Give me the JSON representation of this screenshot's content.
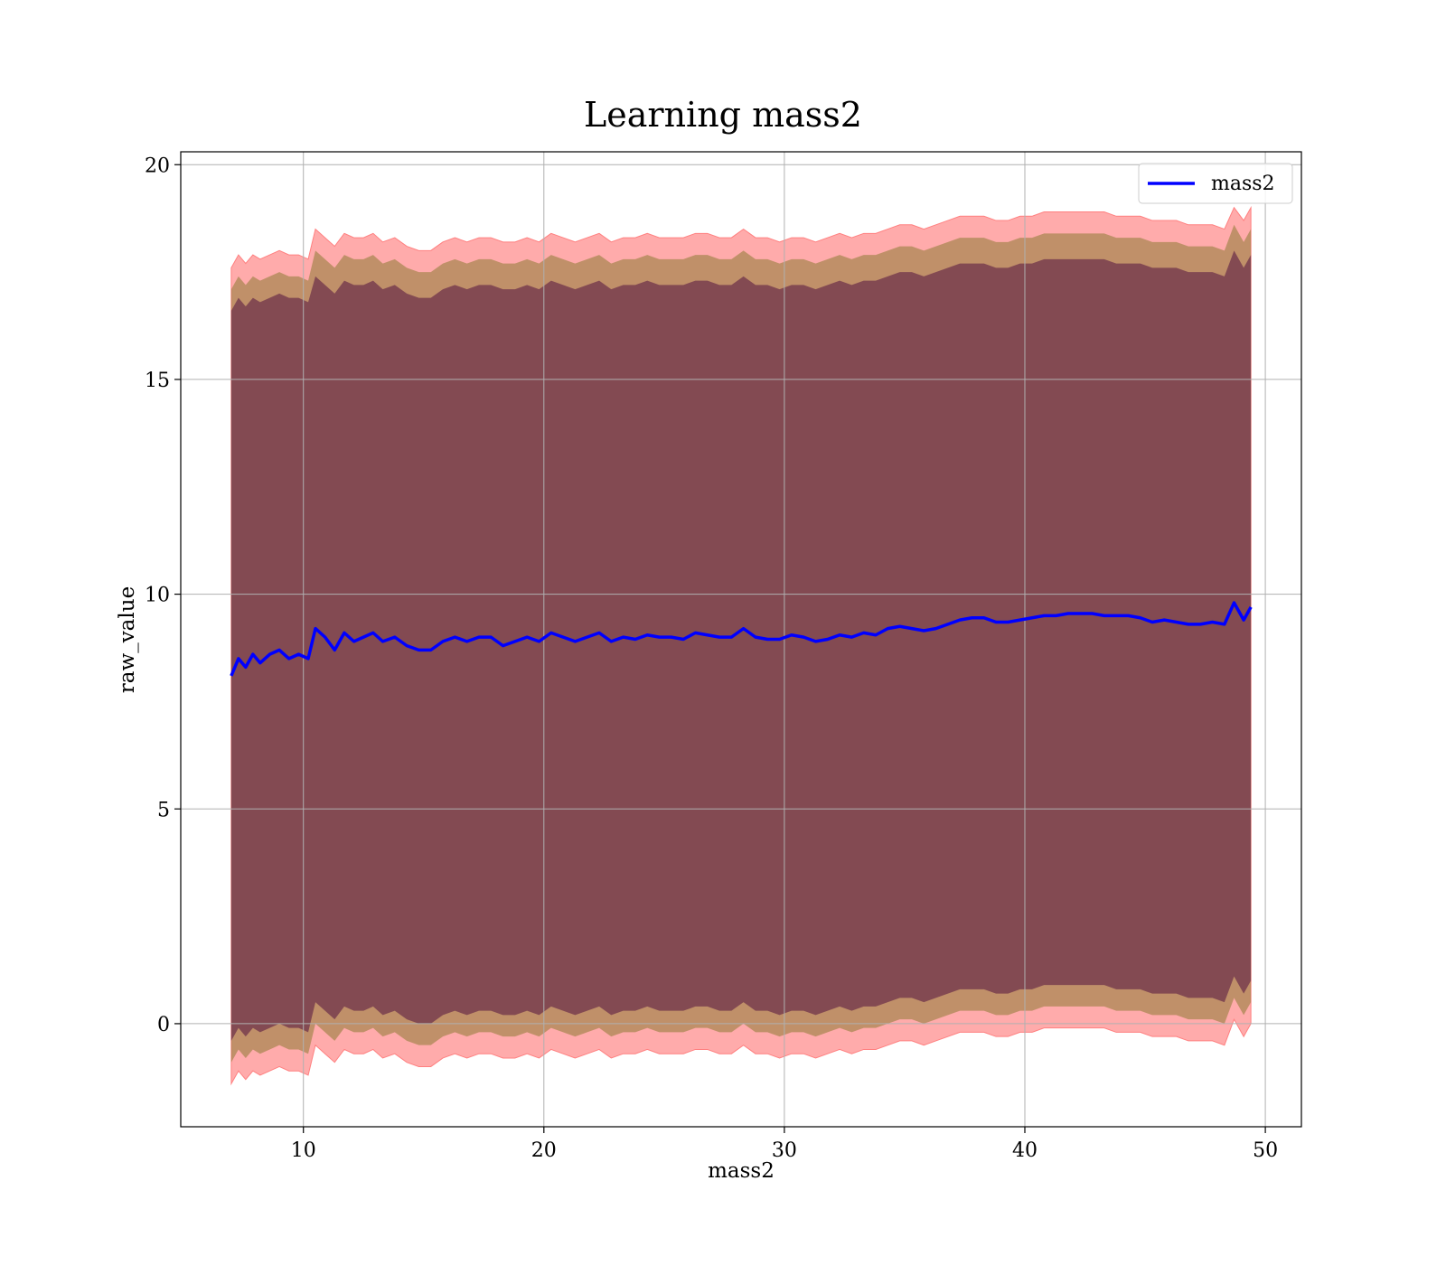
{
  "chart_data": {
    "type": "line",
    "title": "Learning mass2",
    "xlabel": "mass2",
    "ylabel": "raw_value",
    "xlim": [
      4.9,
      51.5
    ],
    "ylim": [
      -2.4,
      20.3
    ],
    "xticks": [
      10,
      20,
      30,
      40,
      50
    ],
    "yticks": [
      0,
      5,
      10,
      15,
      20
    ],
    "grid": true,
    "legend_position": "top-right",
    "colors": {
      "line": "#0000ff",
      "outer_band": "#ff6666",
      "middle_band": "#8c7a33",
      "inner_band": "#6a2c48",
      "grid": "#b0b0b0"
    },
    "series": [
      {
        "name": "mass2",
        "x": [
          7.0,
          7.3,
          7.6,
          7.9,
          8.2,
          8.6,
          9.0,
          9.4,
          9.8,
          10.2,
          10.5,
          10.9,
          11.3,
          11.7,
          12.1,
          12.5,
          12.9,
          13.3,
          13.8,
          14.3,
          14.8,
          15.3,
          15.8,
          16.3,
          16.8,
          17.3,
          17.8,
          18.3,
          18.8,
          19.3,
          19.8,
          20.3,
          20.8,
          21.3,
          21.8,
          22.3,
          22.8,
          23.3,
          23.8,
          24.3,
          24.8,
          25.3,
          25.8,
          26.3,
          26.8,
          27.3,
          27.8,
          28.3,
          28.8,
          29.3,
          29.8,
          30.3,
          30.8,
          31.3,
          31.8,
          32.3,
          32.8,
          33.3,
          33.8,
          34.3,
          34.8,
          35.3,
          35.8,
          36.3,
          36.8,
          37.3,
          37.8,
          38.3,
          38.8,
          39.3,
          39.8,
          40.3,
          40.8,
          41.3,
          41.8,
          42.3,
          42.8,
          43.3,
          43.8,
          44.3,
          44.8,
          45.3,
          45.8,
          46.3,
          46.8,
          47.3,
          47.8,
          48.3,
          48.7,
          49.1,
          49.4
        ],
        "y": [
          8.1,
          8.5,
          8.3,
          8.6,
          8.4,
          8.6,
          8.7,
          8.5,
          8.6,
          8.5,
          9.2,
          9.0,
          8.7,
          9.1,
          8.9,
          9.0,
          9.1,
          8.9,
          9.0,
          8.8,
          8.7,
          8.7,
          8.9,
          9.0,
          8.9,
          9.0,
          9.0,
          8.8,
          8.9,
          9.0,
          8.9,
          9.1,
          9.0,
          8.9,
          9.0,
          9.1,
          8.9,
          9.0,
          8.95,
          9.05,
          9.0,
          9.0,
          8.95,
          9.1,
          9.05,
          9.0,
          9.0,
          9.2,
          9.0,
          8.95,
          8.95,
          9.05,
          9.0,
          8.9,
          8.95,
          9.05,
          9.0,
          9.1,
          9.05,
          9.2,
          9.25,
          9.2,
          9.15,
          9.2,
          9.3,
          9.4,
          9.45,
          9.45,
          9.35,
          9.35,
          9.4,
          9.45,
          9.5,
          9.5,
          9.55,
          9.55,
          9.55,
          9.5,
          9.5,
          9.5,
          9.45,
          9.35,
          9.4,
          9.35,
          9.3,
          9.3,
          9.35,
          9.3,
          9.8,
          9.4,
          9.7
        ]
      }
    ],
    "bands": {
      "outer_upper": [
        17.6,
        17.9,
        17.7,
        17.9,
        17.8,
        17.9,
        18.0,
        17.9,
        17.9,
        17.8,
        18.5,
        18.3,
        18.1,
        18.4,
        18.3,
        18.3,
        18.4,
        18.2,
        18.3,
        18.1,
        18.0,
        18.0,
        18.2,
        18.3,
        18.2,
        18.3,
        18.3,
        18.2,
        18.2,
        18.3,
        18.2,
        18.4,
        18.3,
        18.2,
        18.3,
        18.4,
        18.2,
        18.3,
        18.3,
        18.4,
        18.3,
        18.3,
        18.3,
        18.4,
        18.4,
        18.3,
        18.3,
        18.5,
        18.3,
        18.3,
        18.2,
        18.3,
        18.3,
        18.2,
        18.3,
        18.4,
        18.3,
        18.4,
        18.4,
        18.5,
        18.6,
        18.6,
        18.5,
        18.6,
        18.7,
        18.8,
        18.8,
        18.8,
        18.7,
        18.7,
        18.8,
        18.8,
        18.9,
        18.9,
        18.9,
        18.9,
        18.9,
        18.9,
        18.8,
        18.8,
        18.8,
        18.7,
        18.7,
        18.7,
        18.6,
        18.6,
        18.6,
        18.5,
        19.0,
        18.7,
        19.0
      ],
      "middle_upper": [
        17.1,
        17.4,
        17.2,
        17.4,
        17.3,
        17.4,
        17.5,
        17.4,
        17.4,
        17.3,
        18.0,
        17.8,
        17.6,
        17.9,
        17.8,
        17.8,
        17.9,
        17.7,
        17.8,
        17.6,
        17.5,
        17.5,
        17.7,
        17.8,
        17.7,
        17.8,
        17.8,
        17.7,
        17.7,
        17.8,
        17.7,
        17.9,
        17.8,
        17.7,
        17.8,
        17.9,
        17.7,
        17.8,
        17.8,
        17.9,
        17.8,
        17.8,
        17.8,
        17.9,
        17.9,
        17.8,
        17.8,
        18.0,
        17.8,
        17.8,
        17.7,
        17.8,
        17.8,
        17.7,
        17.8,
        17.9,
        17.8,
        17.9,
        17.9,
        18.0,
        18.1,
        18.1,
        18.0,
        18.1,
        18.2,
        18.3,
        18.3,
        18.3,
        18.2,
        18.2,
        18.3,
        18.3,
        18.4,
        18.4,
        18.4,
        18.4,
        18.4,
        18.4,
        18.3,
        18.3,
        18.3,
        18.2,
        18.2,
        18.2,
        18.1,
        18.1,
        18.1,
        18.0,
        18.6,
        18.2,
        18.5
      ],
      "inner_upper": [
        16.6,
        16.9,
        16.7,
        16.9,
        16.8,
        16.9,
        17.0,
        16.9,
        16.9,
        16.8,
        17.4,
        17.2,
        17.0,
        17.3,
        17.2,
        17.2,
        17.3,
        17.1,
        17.2,
        17.0,
        16.9,
        16.9,
        17.1,
        17.2,
        17.1,
        17.2,
        17.2,
        17.1,
        17.1,
        17.2,
        17.1,
        17.3,
        17.2,
        17.1,
        17.2,
        17.3,
        17.1,
        17.2,
        17.2,
        17.3,
        17.2,
        17.2,
        17.2,
        17.3,
        17.3,
        17.2,
        17.2,
        17.4,
        17.2,
        17.2,
        17.1,
        17.2,
        17.2,
        17.1,
        17.2,
        17.3,
        17.2,
        17.3,
        17.3,
        17.4,
        17.5,
        17.5,
        17.4,
        17.5,
        17.6,
        17.7,
        17.7,
        17.7,
        17.6,
        17.6,
        17.7,
        17.7,
        17.8,
        17.8,
        17.8,
        17.8,
        17.8,
        17.8,
        17.7,
        17.7,
        17.7,
        17.6,
        17.6,
        17.6,
        17.5,
        17.5,
        17.5,
        17.4,
        18.0,
        17.6,
        17.9
      ],
      "inner_lower": [
        -0.4,
        -0.1,
        -0.3,
        -0.1,
        -0.2,
        -0.1,
        0.0,
        -0.1,
        -0.1,
        -0.2,
        0.5,
        0.3,
        0.1,
        0.4,
        0.3,
        0.3,
        0.4,
        0.2,
        0.3,
        0.1,
        0.0,
        0.0,
        0.2,
        0.3,
        0.2,
        0.3,
        0.3,
        0.2,
        0.2,
        0.3,
        0.2,
        0.4,
        0.3,
        0.2,
        0.3,
        0.4,
        0.2,
        0.3,
        0.3,
        0.4,
        0.3,
        0.3,
        0.3,
        0.4,
        0.4,
        0.3,
        0.3,
        0.5,
        0.3,
        0.3,
        0.2,
        0.3,
        0.3,
        0.2,
        0.3,
        0.4,
        0.3,
        0.4,
        0.4,
        0.5,
        0.6,
        0.6,
        0.5,
        0.6,
        0.7,
        0.8,
        0.8,
        0.8,
        0.7,
        0.7,
        0.8,
        0.8,
        0.9,
        0.9,
        0.9,
        0.9,
        0.9,
        0.9,
        0.8,
        0.8,
        0.8,
        0.7,
        0.7,
        0.7,
        0.6,
        0.6,
        0.6,
        0.5,
        1.1,
        0.7,
        1.0
      ],
      "middle_lower": [
        -0.9,
        -0.6,
        -0.8,
        -0.6,
        -0.7,
        -0.6,
        -0.5,
        -0.6,
        -0.6,
        -0.7,
        0.0,
        -0.2,
        -0.4,
        -0.1,
        -0.2,
        -0.2,
        -0.1,
        -0.3,
        -0.2,
        -0.4,
        -0.5,
        -0.5,
        -0.3,
        -0.2,
        -0.3,
        -0.2,
        -0.2,
        -0.3,
        -0.3,
        -0.2,
        -0.3,
        -0.1,
        -0.2,
        -0.3,
        -0.2,
        -0.1,
        -0.3,
        -0.2,
        -0.2,
        -0.1,
        -0.2,
        -0.2,
        -0.2,
        -0.1,
        -0.1,
        -0.2,
        -0.2,
        0.0,
        -0.2,
        -0.2,
        -0.3,
        -0.2,
        -0.2,
        -0.3,
        -0.2,
        -0.1,
        -0.2,
        -0.1,
        -0.1,
        0.0,
        0.1,
        0.1,
        0.0,
        0.1,
        0.2,
        0.3,
        0.3,
        0.3,
        0.2,
        0.2,
        0.3,
        0.3,
        0.4,
        0.4,
        0.4,
        0.4,
        0.4,
        0.4,
        0.3,
        0.3,
        0.3,
        0.2,
        0.2,
        0.2,
        0.1,
        0.1,
        0.1,
        0.0,
        0.6,
        0.2,
        0.5
      ],
      "outer_lower": [
        -1.4,
        -1.1,
        -1.3,
        -1.1,
        -1.2,
        -1.1,
        -1.0,
        -1.1,
        -1.1,
        -1.2,
        -0.5,
        -0.7,
        -0.9,
        -0.6,
        -0.7,
        -0.7,
        -0.6,
        -0.8,
        -0.7,
        -0.9,
        -1.0,
        -1.0,
        -0.8,
        -0.7,
        -0.8,
        -0.7,
        -0.7,
        -0.8,
        -0.8,
        -0.7,
        -0.8,
        -0.6,
        -0.7,
        -0.8,
        -0.7,
        -0.6,
        -0.8,
        -0.7,
        -0.7,
        -0.6,
        -0.7,
        -0.7,
        -0.7,
        -0.6,
        -0.6,
        -0.7,
        -0.7,
        -0.5,
        -0.7,
        -0.7,
        -0.8,
        -0.7,
        -0.7,
        -0.8,
        -0.7,
        -0.6,
        -0.7,
        -0.6,
        -0.6,
        -0.5,
        -0.4,
        -0.4,
        -0.5,
        -0.4,
        -0.3,
        -0.2,
        -0.2,
        -0.2,
        -0.3,
        -0.3,
        -0.2,
        -0.2,
        -0.1,
        -0.1,
        -0.1,
        -0.1,
        -0.1,
        -0.1,
        -0.2,
        -0.2,
        -0.2,
        -0.3,
        -0.3,
        -0.3,
        -0.4,
        -0.4,
        -0.4,
        -0.5,
        0.1,
        -0.3,
        0.0
      ]
    }
  }
}
